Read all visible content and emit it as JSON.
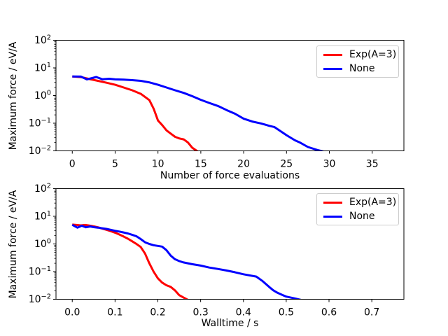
{
  "figure": {
    "background": "#ffffff"
  },
  "chart_data": [
    {
      "type": "line",
      "title": "",
      "xlabel": "Number of force evaluations",
      "ylabel": "Maximum force / eV/A",
      "xlim": [
        -1.9,
        38.7
      ],
      "ylog_range": [
        -2,
        2
      ],
      "grid": false,
      "legend_position": "upper right",
      "x_ticks": [
        0,
        5,
        10,
        15,
        20,
        25,
        30,
        35
      ],
      "x_tick_labels": [
        "0",
        "5",
        "10",
        "15",
        "20",
        "25",
        "30",
        "35"
      ],
      "y_ticks": [
        {
          "base": "10",
          "exp": "2",
          "e": 2
        },
        {
          "base": "10",
          "exp": "1",
          "e": 1
        },
        {
          "base": "10",
          "exp": "0",
          "e": 0
        },
        {
          "base": "10",
          "exp": "−1",
          "e": -1
        },
        {
          "base": "10",
          "exp": "−2",
          "e": -2
        }
      ],
      "legend": [
        {
          "label": "Exp(A=3)",
          "color": "#ff0000"
        },
        {
          "label": "None",
          "color": "#0000ff"
        }
      ],
      "series": [
        {
          "name": "Exp(A=3)",
          "color": "#ff0000",
          "points": [
            [
              0,
              4.9
            ],
            [
              1,
              4.65
            ],
            [
              2,
              3.95
            ],
            [
              3,
              3.4
            ],
            [
              4,
              2.9
            ],
            [
              5,
              2.45
            ],
            [
              6,
              1.95
            ],
            [
              7,
              1.55
            ],
            [
              8,
              1.15
            ],
            [
              9,
              0.68
            ],
            [
              9.5,
              0.33
            ],
            [
              10,
              0.125
            ],
            [
              10.5,
              0.085
            ],
            [
              11,
              0.055
            ],
            [
              11.5,
              0.042
            ],
            [
              12,
              0.032
            ],
            [
              12.5,
              0.028
            ],
            [
              13,
              0.026
            ],
            [
              13.5,
              0.02
            ],
            [
              14,
              0.013
            ],
            [
              14.7,
              0.0092
            ]
          ]
        },
        {
          "name": "None",
          "color": "#0000ff",
          "points": [
            [
              0,
              4.9
            ],
            [
              1,
              4.85
            ],
            [
              1.7,
              3.85
            ],
            [
              2.8,
              4.7
            ],
            [
              3.5,
              3.9
            ],
            [
              4.3,
              4.05
            ],
            [
              5,
              3.85
            ],
            [
              6,
              3.75
            ],
            [
              7,
              3.6
            ],
            [
              8,
              3.4
            ],
            [
              9,
              3.0
            ],
            [
              10,
              2.45
            ],
            [
              11,
              1.95
            ],
            [
              12,
              1.55
            ],
            [
              13,
              1.25
            ],
            [
              14,
              0.95
            ],
            [
              15,
              0.7
            ],
            [
              16,
              0.54
            ],
            [
              17,
              0.42
            ],
            [
              18,
              0.3
            ],
            [
              19,
              0.22
            ],
            [
              20,
              0.145
            ],
            [
              21,
              0.115
            ],
            [
              22,
              0.098
            ],
            [
              23,
              0.08
            ],
            [
              23.6,
              0.072
            ],
            [
              25,
              0.037
            ],
            [
              26,
              0.024
            ],
            [
              26.5,
              0.0205
            ],
            [
              27.5,
              0.0138
            ],
            [
              28.6,
              0.0107
            ],
            [
              29.5,
              0.0092
            ]
          ]
        }
      ]
    },
    {
      "type": "line",
      "title": "",
      "xlabel": "Walltime / s",
      "ylabel": "Maximum force / eV/A",
      "xlim": [
        -0.038,
        0.775
      ],
      "ylog_range": [
        -2,
        2
      ],
      "grid": false,
      "legend_position": "upper right",
      "x_ticks": [
        0.0,
        0.1,
        0.2,
        0.3,
        0.4,
        0.5,
        0.6,
        0.7
      ],
      "x_tick_labels": [
        "0.0",
        "0.1",
        "0.2",
        "0.3",
        "0.4",
        "0.5",
        "0.6",
        "0.7"
      ],
      "y_ticks": [
        {
          "base": "10",
          "exp": "2",
          "e": 2
        },
        {
          "base": "10",
          "exp": "1",
          "e": 1
        },
        {
          "base": "10",
          "exp": "0",
          "e": 0
        },
        {
          "base": "10",
          "exp": "−1",
          "e": -1
        },
        {
          "base": "10",
          "exp": "−2",
          "e": -2
        }
      ],
      "legend": [
        {
          "label": "Exp(A=3)",
          "color": "#ff0000"
        },
        {
          "label": "None",
          "color": "#0000ff"
        }
      ],
      "series": [
        {
          "name": "Exp(A=3)",
          "color": "#ff0000",
          "points": [
            [
              0,
              5.0
            ],
            [
              0.01,
              4.85
            ],
            [
              0.02,
              4.7
            ],
            [
              0.03,
              4.85
            ],
            [
              0.045,
              4.5
            ],
            [
              0.06,
              4.0
            ],
            [
              0.07,
              3.6
            ],
            [
              0.08,
              3.25
            ],
            [
              0.09,
              2.9
            ],
            [
              0.1,
              2.55
            ],
            [
              0.11,
              2.2
            ],
            [
              0.12,
              1.85
            ],
            [
              0.13,
              1.55
            ],
            [
              0.14,
              1.25
            ],
            [
              0.15,
              1.0
            ],
            [
              0.16,
              0.78
            ],
            [
              0.17,
              0.45
            ],
            [
              0.18,
              0.2
            ],
            [
              0.19,
              0.1
            ],
            [
              0.2,
              0.057
            ],
            [
              0.21,
              0.04
            ],
            [
              0.22,
              0.032
            ],
            [
              0.23,
              0.028
            ],
            [
              0.24,
              0.021
            ],
            [
              0.25,
              0.014
            ],
            [
              0.26,
              0.0115
            ],
            [
              0.272,
              0.0092
            ]
          ]
        },
        {
          "name": "None",
          "color": "#0000ff",
          "points": [
            [
              0,
              4.9
            ],
            [
              0.012,
              3.9
            ],
            [
              0.022,
              4.55
            ],
            [
              0.032,
              4.0
            ],
            [
              0.042,
              4.3
            ],
            [
              0.05,
              4.05
            ],
            [
              0.06,
              3.9
            ],
            [
              0.07,
              3.7
            ],
            [
              0.08,
              3.5
            ],
            [
              0.09,
              3.25
            ],
            [
              0.1,
              3.0
            ],
            [
              0.11,
              2.8
            ],
            [
              0.12,
              2.6
            ],
            [
              0.13,
              2.4
            ],
            [
              0.14,
              2.15
            ],
            [
              0.15,
              1.9
            ],
            [
              0.16,
              1.5
            ],
            [
              0.17,
              1.15
            ],
            [
              0.18,
              1.0
            ],
            [
              0.19,
              0.9
            ],
            [
              0.2,
              0.85
            ],
            [
              0.21,
              0.8
            ],
            [
              0.22,
              0.6
            ],
            [
              0.23,
              0.38
            ],
            [
              0.24,
              0.28
            ],
            [
              0.25,
              0.24
            ],
            [
              0.26,
              0.215
            ],
            [
              0.28,
              0.185
            ],
            [
              0.3,
              0.165
            ],
            [
              0.32,
              0.14
            ],
            [
              0.34,
              0.125
            ],
            [
              0.36,
              0.11
            ],
            [
              0.38,
              0.095
            ],
            [
              0.4,
              0.08
            ],
            [
              0.43,
              0.066
            ],
            [
              0.445,
              0.045
            ],
            [
              0.46,
              0.028
            ],
            [
              0.47,
              0.021
            ],
            [
              0.48,
              0.017
            ],
            [
              0.49,
              0.0145
            ],
            [
              0.5,
              0.0125
            ],
            [
              0.52,
              0.0107
            ],
            [
              0.535,
              0.0095
            ]
          ]
        }
      ]
    }
  ]
}
